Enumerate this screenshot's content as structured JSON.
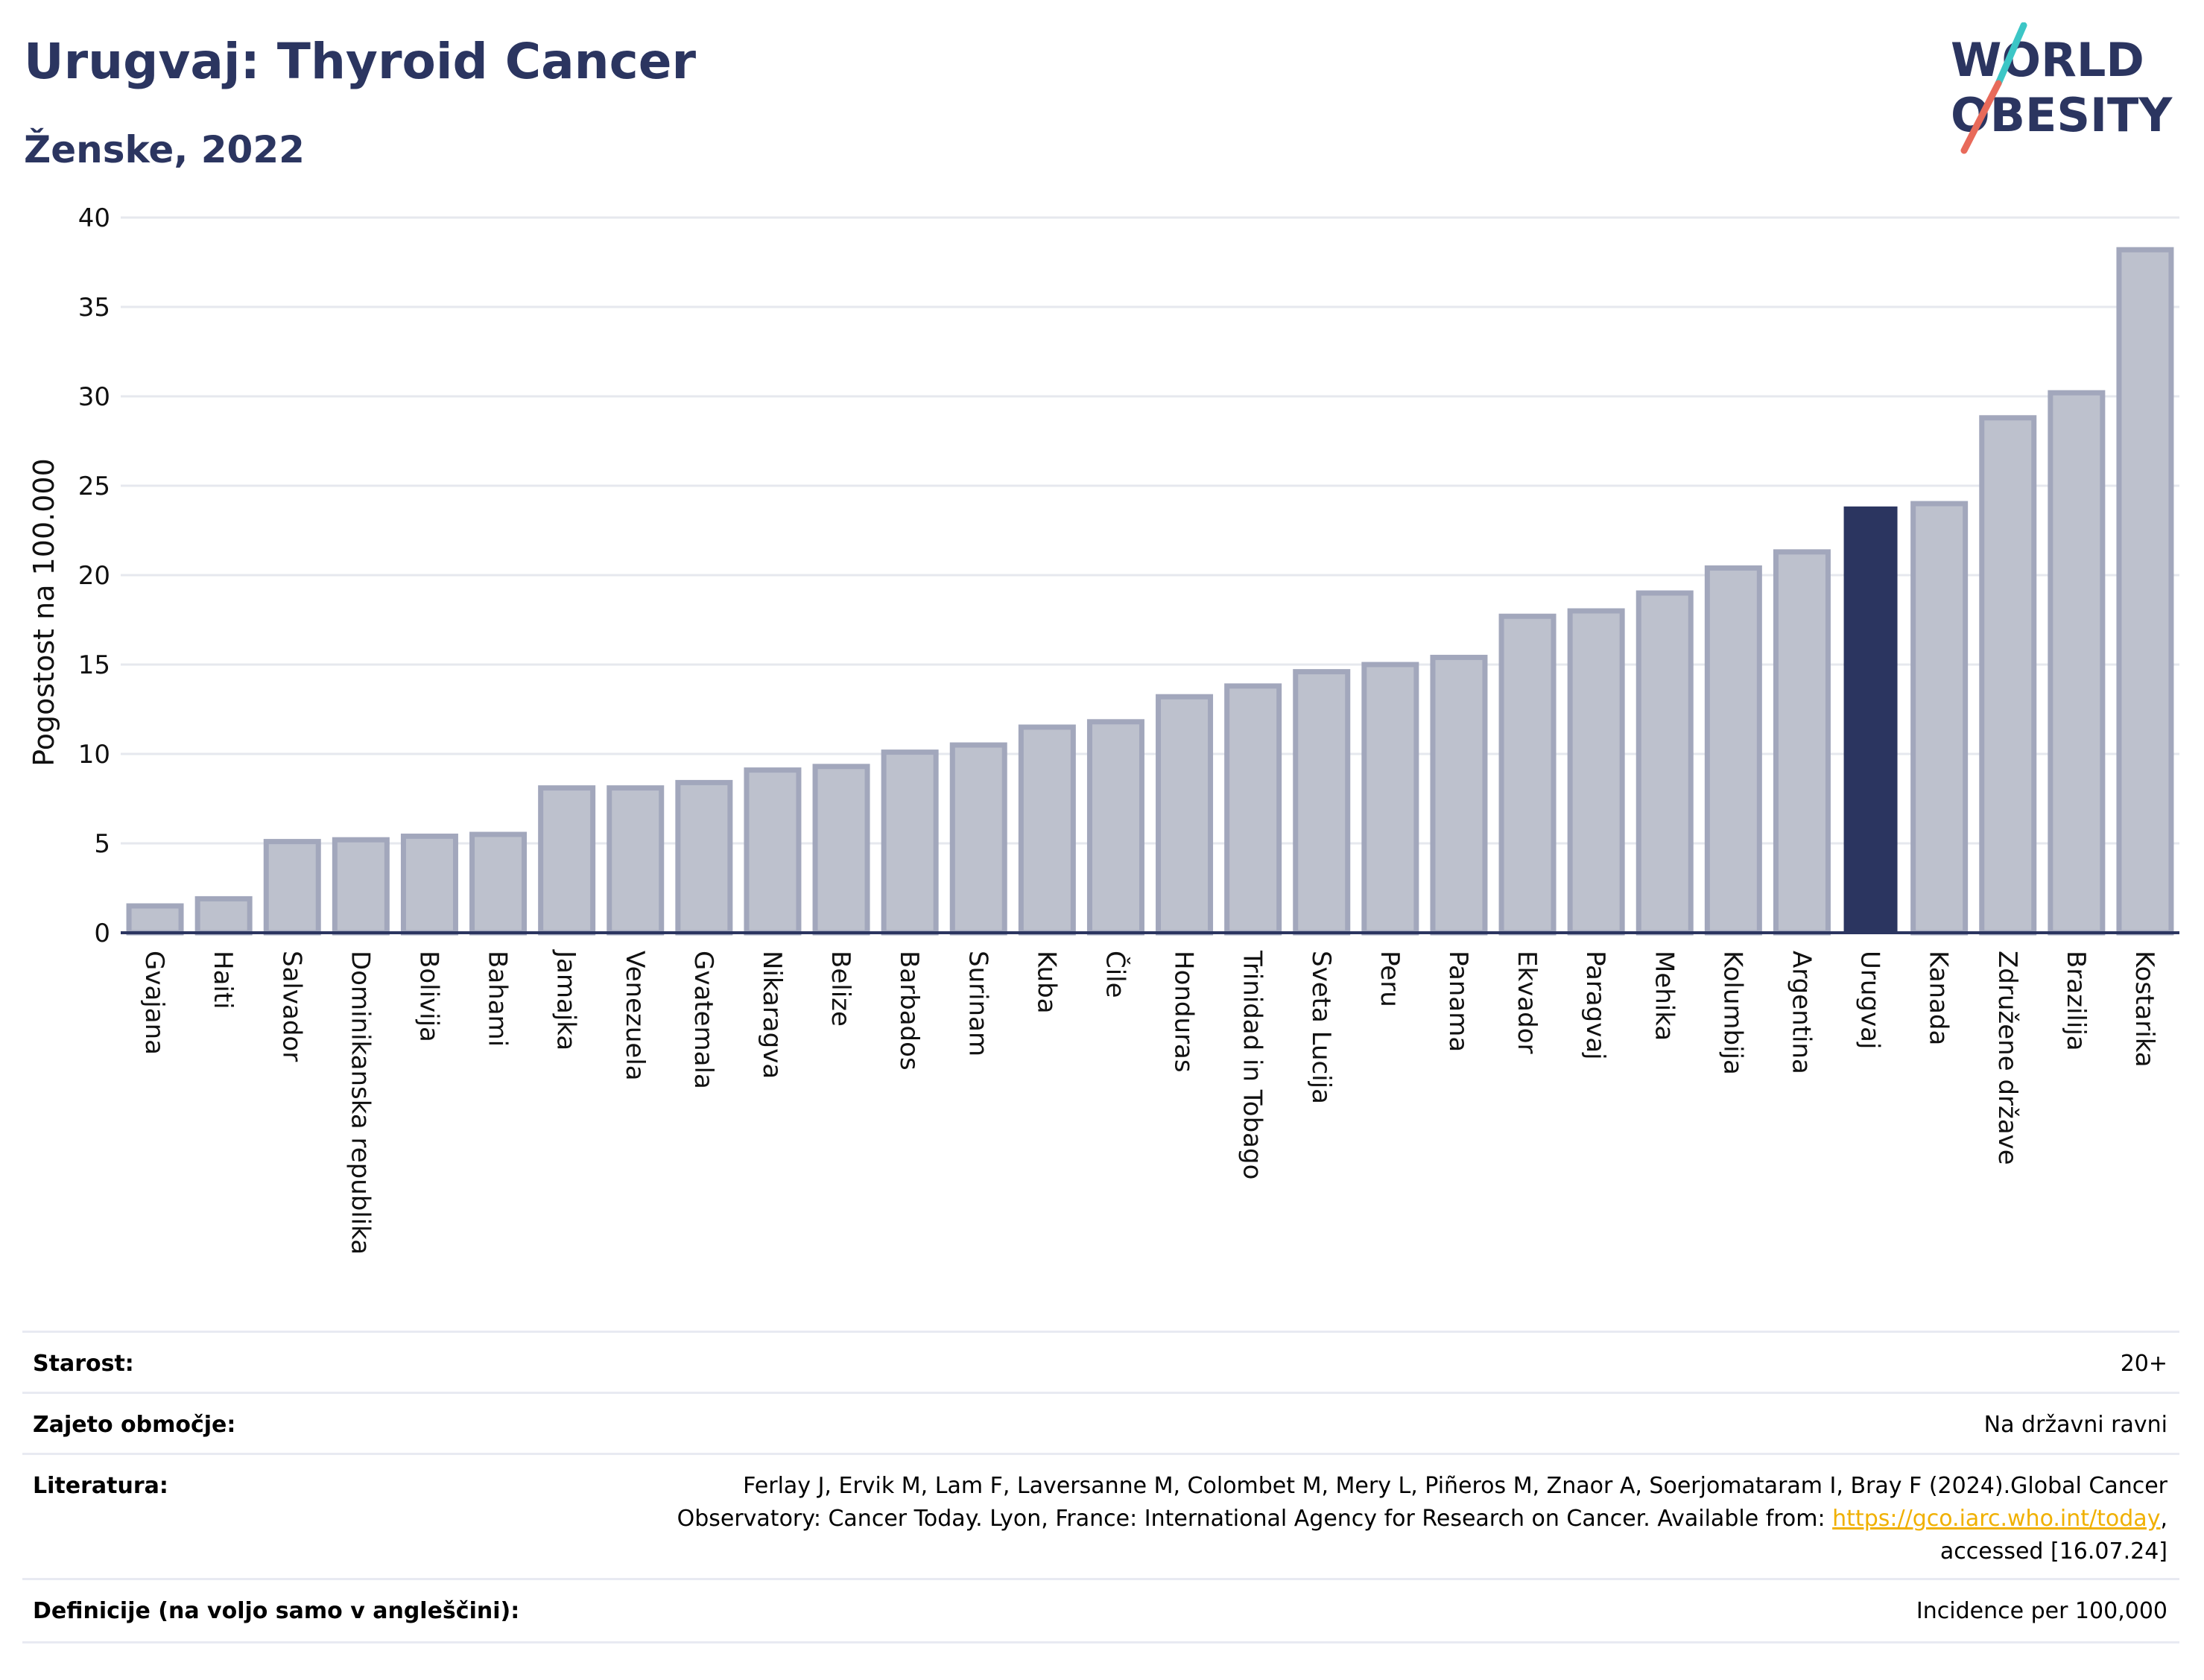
{
  "header": {
    "title": "Urugvaj: Thyroid Cancer",
    "subtitle": "Ženske, 2022"
  },
  "logo": {
    "line1": "WORLD",
    "line2": "OBESITY",
    "text_color": "#2b3560",
    "slash_colors": [
      "#3cc6c6",
      "#e86a5a"
    ]
  },
  "chart_data": {
    "type": "bar",
    "ylabel": "Pogostost na 100.000",
    "xlabel": "",
    "ylim": [
      0,
      40
    ],
    "yticks": [
      0,
      5,
      10,
      15,
      20,
      25,
      30,
      35,
      40
    ],
    "grid": true,
    "categories": [
      "Gvajana",
      "Haiti",
      "Salvador",
      "Dominikanska republika",
      "Bolivija",
      "Bahami",
      "Jamajka",
      "Venezuela",
      "Gvatemala",
      "Nikaragva",
      "Belize",
      "Barbados",
      "Surinam",
      "Kuba",
      "Čile",
      "Honduras",
      "Trinidad in Tobago",
      "Sveta Lucija",
      "Peru",
      "Panama",
      "Ekvador",
      "Paragvaj",
      "Mehika",
      "Kolumbija",
      "Argentina",
      "Urugvaj",
      "Kanada",
      "Združene države",
      "Brazilija",
      "Kostarika"
    ],
    "values": [
      1.5,
      1.9,
      5.1,
      5.2,
      5.4,
      5.5,
      8.1,
      8.1,
      8.4,
      9.1,
      9.3,
      10.1,
      10.5,
      11.5,
      11.8,
      13.2,
      13.8,
      14.6,
      15.0,
      15.4,
      17.7,
      18.0,
      19.0,
      20.4,
      21.3,
      23.8,
      24.0,
      28.8,
      30.2,
      38.2
    ],
    "highlight": "Urugvaj",
    "colors": {
      "bar_fill": "#bdc1cd",
      "bar_stroke": "#a2a7bc",
      "highlight_fill": "#2b3560",
      "grid": "#e6e8ee",
      "axis": "#2b3560"
    }
  },
  "info": {
    "age_label": "Starost:",
    "age_value": "20+",
    "coverage_label": "Zajeto območje:",
    "coverage_value": "Na državni ravni",
    "reference_label": "Literatura:",
    "reference_line1": "Ferlay J, Ervik M, Lam F, Laversanne M, Colombet M, Mery L, Piñeros M, Znaor A, Soerjomataram I, Bray F (2024).Global Cancer",
    "reference_line2": "Observatory: Cancer Today. Lyon, France: International Agency for Research on Cancer. Available from:",
    "reference_link": "https://gco.iarc.who.int/today",
    "reference_line3": "accessed [16.07.24]",
    "definitions_label": "Definicije (na voljo samo v angleščini):",
    "definitions_value": "Incidence per 100,000"
  }
}
